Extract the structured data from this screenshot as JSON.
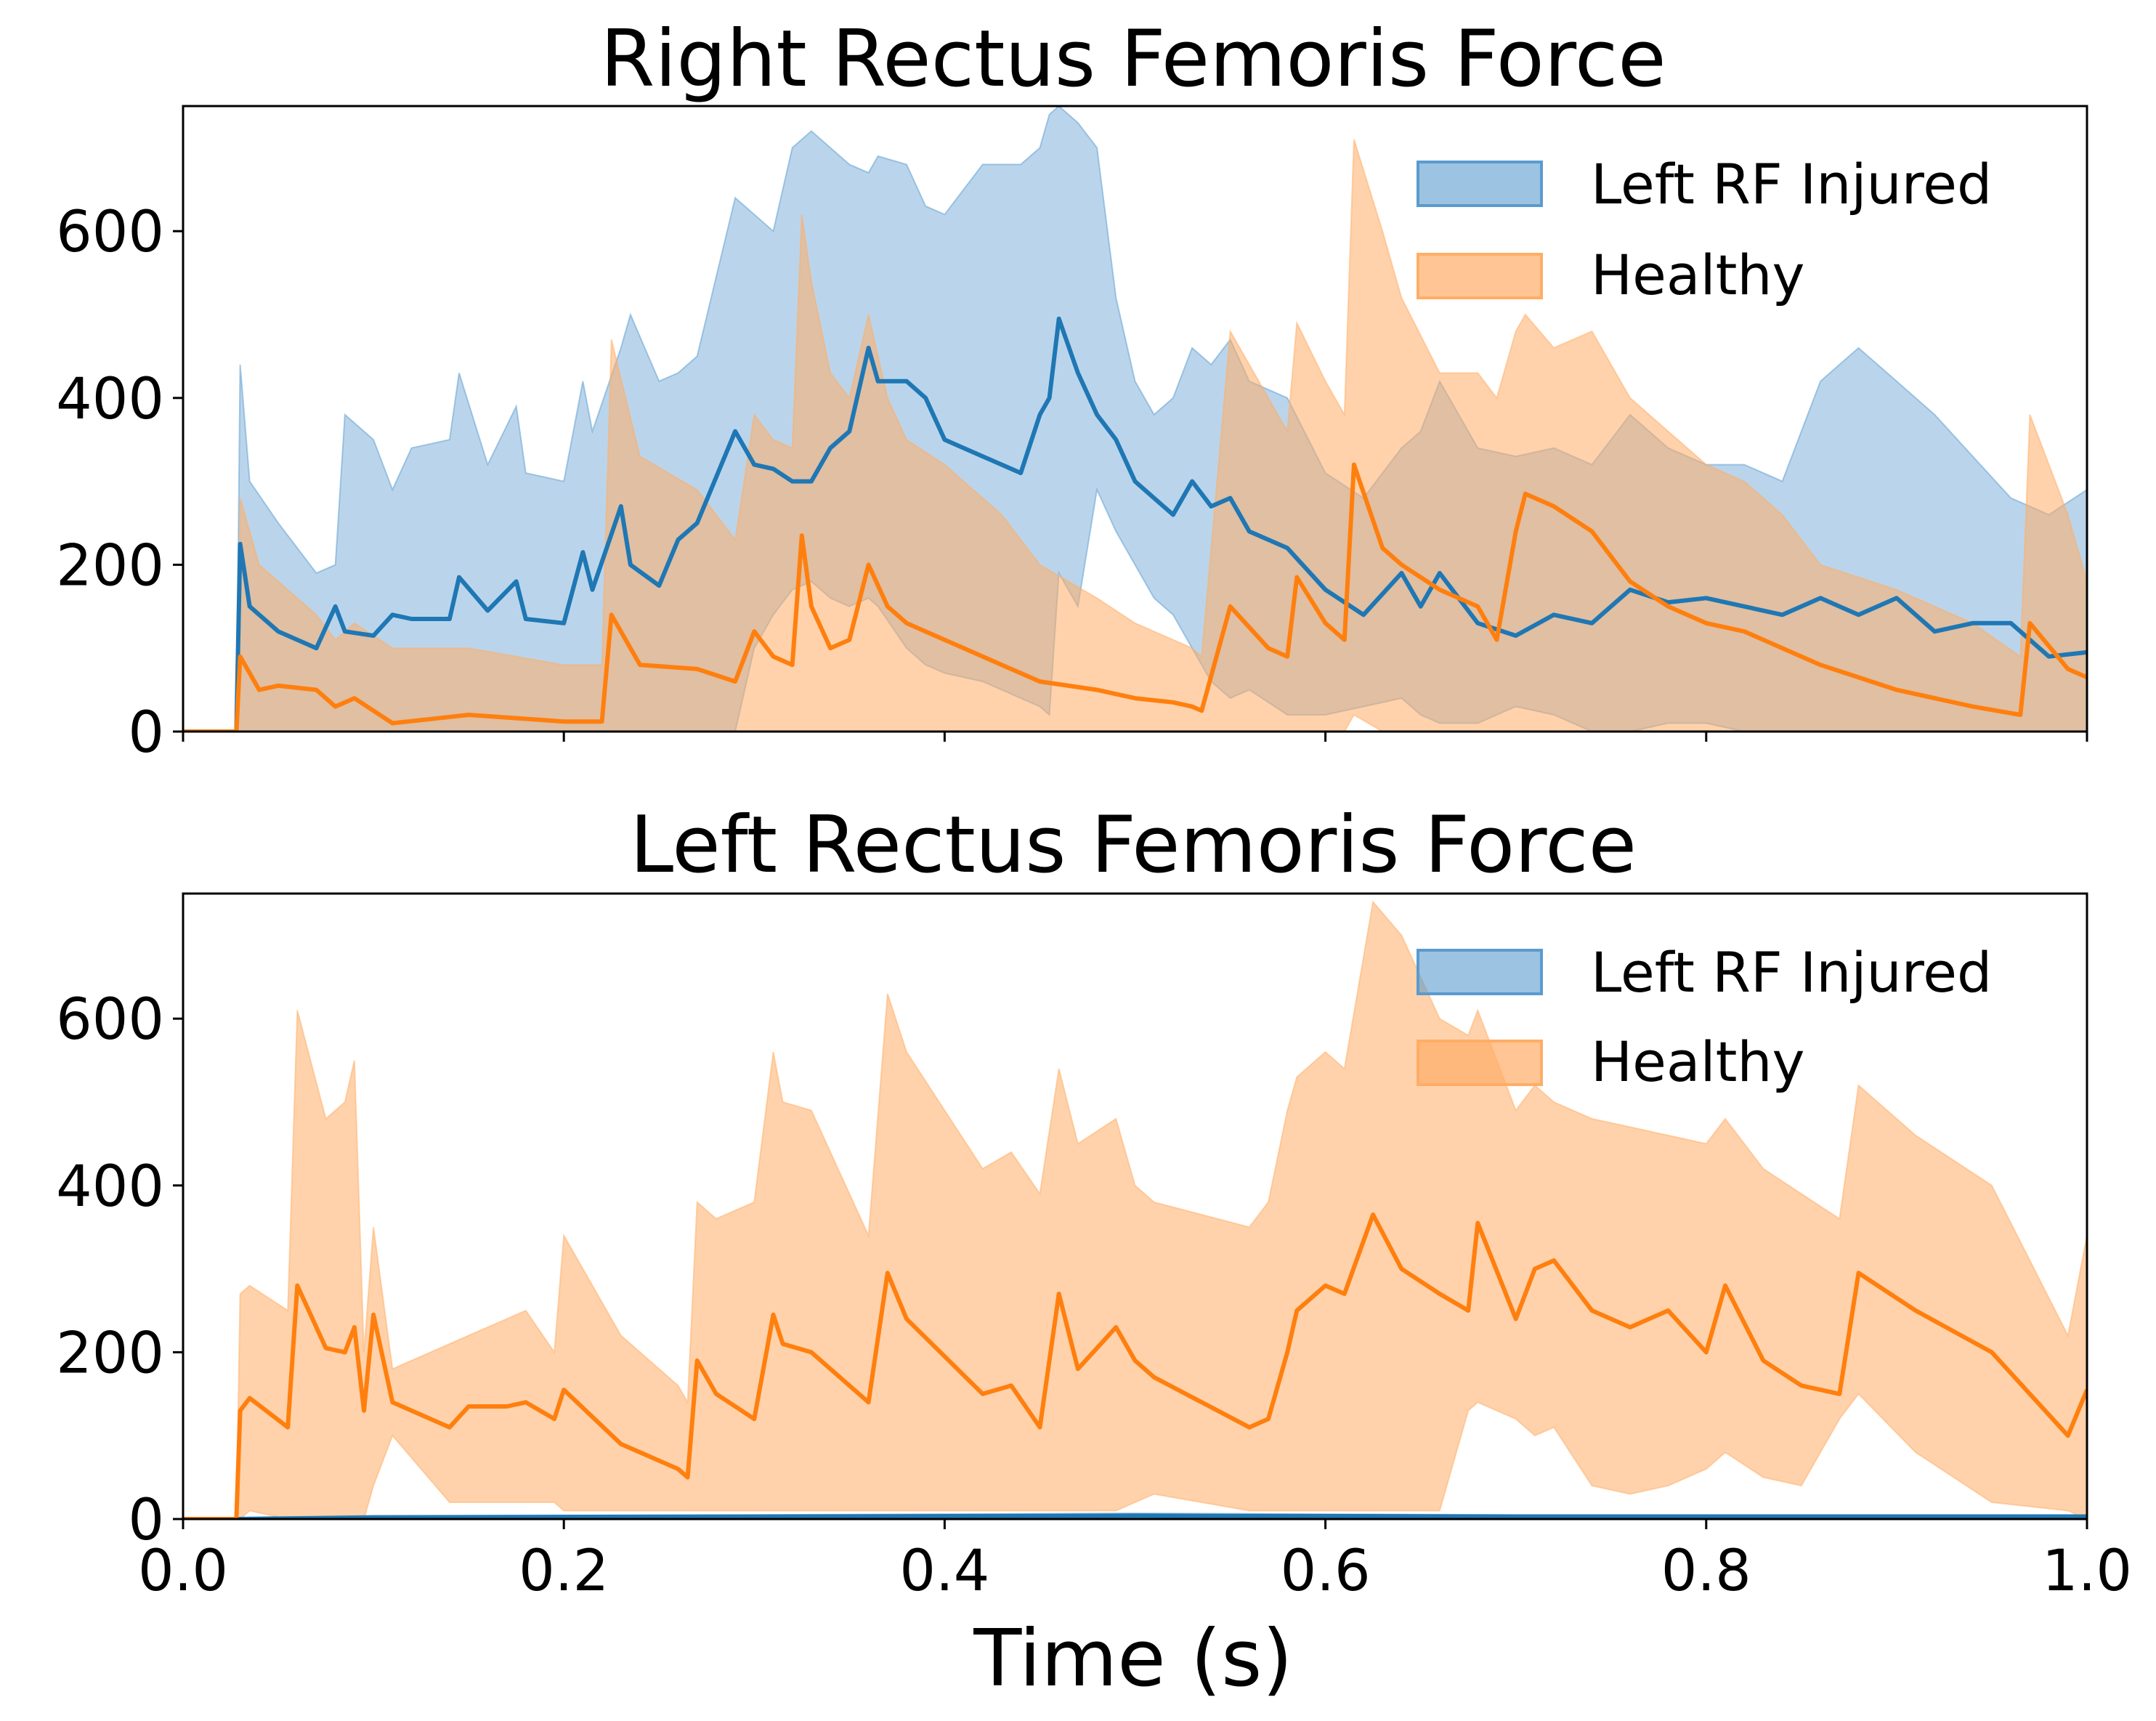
{
  "colors": {
    "injured": "#1f77b4",
    "healthy": "#ff7f0e",
    "injured_band": "#5a9bcf",
    "healthy_band": "#ffad66",
    "axis": "#000000"
  },
  "xlabel": "Time (s)",
  "chart_data": [
    {
      "type": "area",
      "title": "Right Rectus Femoris Force",
      "xlabel": "",
      "ylabel": "",
      "xlim": [
        0,
        1.0
      ],
      "ylim": [
        0,
        750
      ],
      "x_ticks": [
        "0.0",
        "0.2",
        "0.4",
        "0.6",
        "0.8",
        "1.0"
      ],
      "y_ticks": [
        "0",
        "200",
        "400",
        "600"
      ],
      "legend": {
        "position": "top-right",
        "entries": [
          "Left RF Injured",
          "Healthy"
        ]
      },
      "series": [
        {
          "name": "Left RF Injured",
          "color": "#1f77b4",
          "x": [
            0,
            0.028,
            0.03,
            0.035,
            0.05,
            0.07,
            0.08,
            0.085,
            0.1,
            0.11,
            0.12,
            0.14,
            0.145,
            0.16,
            0.175,
            0.18,
            0.2,
            0.21,
            0.215,
            0.23,
            0.235,
            0.25,
            0.26,
            0.27,
            0.29,
            0.3,
            0.31,
            0.32,
            0.33,
            0.34,
            0.35,
            0.36,
            0.365,
            0.38,
            0.39,
            0.4,
            0.42,
            0.44,
            0.45,
            0.455,
            0.46,
            0.47,
            0.48,
            0.49,
            0.5,
            0.51,
            0.52,
            0.53,
            0.54,
            0.55,
            0.56,
            0.58,
            0.6,
            0.62,
            0.64,
            0.65,
            0.66,
            0.68,
            0.7,
            0.72,
            0.74,
            0.76,
            0.78,
            0.8,
            0.82,
            0.84,
            0.86,
            0.88,
            0.9,
            0.92,
            0.94,
            0.96,
            0.98,
            1.0
          ],
          "mean": [
            0,
            0,
            225,
            150,
            120,
            100,
            150,
            120,
            115,
            140,
            135,
            135,
            185,
            145,
            180,
            135,
            130,
            215,
            170,
            270,
            200,
            175,
            230,
            250,
            360,
            320,
            315,
            300,
            300,
            340,
            360,
            460,
            420,
            420,
            400,
            350,
            330,
            310,
            380,
            400,
            495,
            430,
            380,
            350,
            300,
            280,
            260,
            300,
            270,
            280,
            240,
            220,
            170,
            140,
            190,
            150,
            190,
            130,
            115,
            140,
            130,
            170,
            155,
            160,
            150,
            140,
            160,
            140,
            160,
            120,
            130,
            130,
            90,
            95
          ],
          "upper": [
            0,
            0,
            440,
            300,
            250,
            190,
            200,
            380,
            350,
            290,
            340,
            350,
            430,
            320,
            390,
            310,
            300,
            420,
            360,
            460,
            500,
            420,
            430,
            450,
            640,
            620,
            600,
            700,
            720,
            700,
            680,
            670,
            690,
            680,
            630,
            620,
            680,
            680,
            700,
            740,
            760,
            730,
            700,
            520,
            420,
            380,
            400,
            460,
            440,
            470,
            420,
            400,
            310,
            280,
            340,
            360,
            420,
            340,
            330,
            340,
            320,
            380,
            340,
            320,
            320,
            300,
            420,
            460,
            420,
            380,
            330,
            280,
            260,
            290
          ],
          "lower": [
            0,
            0,
            0,
            0,
            0,
            0,
            0,
            0,
            0,
            0,
            0,
            0,
            0,
            0,
            0,
            0,
            0,
            0,
            0,
            0,
            0,
            0,
            0,
            0,
            0,
            100,
            140,
            170,
            180,
            160,
            150,
            160,
            150,
            100,
            80,
            70,
            60,
            40,
            30,
            20,
            190,
            150,
            290,
            240,
            200,
            160,
            140,
            100,
            60,
            40,
            50,
            20,
            20,
            30,
            40,
            20,
            10,
            10,
            30,
            20,
            0,
            0,
            10,
            10,
            0,
            0,
            0,
            0,
            0,
            0,
            0,
            0,
            0,
            0
          ]
        },
        {
          "name": "Healthy",
          "color": "#ff7f0e",
          "x": [
            0,
            0.028,
            0.03,
            0.04,
            0.05,
            0.07,
            0.08,
            0.09,
            0.11,
            0.13,
            0.15,
            0.2,
            0.22,
            0.225,
            0.24,
            0.27,
            0.29,
            0.3,
            0.31,
            0.32,
            0.325,
            0.33,
            0.34,
            0.35,
            0.36,
            0.37,
            0.38,
            0.4,
            0.43,
            0.45,
            0.48,
            0.5,
            0.52,
            0.53,
            0.535,
            0.55,
            0.57,
            0.58,
            0.585,
            0.6,
            0.61,
            0.615,
            0.63,
            0.64,
            0.66,
            0.68,
            0.69,
            0.7,
            0.705,
            0.72,
            0.74,
            0.76,
            0.78,
            0.8,
            0.82,
            0.84,
            0.86,
            0.9,
            0.94,
            0.965,
            0.97,
            0.99,
            1.0
          ],
          "mean": [
            0,
            0,
            90,
            50,
            55,
            50,
            30,
            40,
            10,
            15,
            20,
            12,
            12,
            140,
            80,
            75,
            60,
            120,
            90,
            80,
            235,
            150,
            100,
            110,
            200,
            150,
            130,
            110,
            80,
            60,
            50,
            40,
            35,
            30,
            25,
            150,
            100,
            90,
            185,
            130,
            110,
            320,
            220,
            200,
            170,
            150,
            110,
            240,
            285,
            270,
            240,
            180,
            150,
            130,
            120,
            100,
            80,
            50,
            30,
            20,
            130,
            75,
            65
          ],
          "upper": [
            0,
            0,
            280,
            200,
            180,
            140,
            110,
            130,
            100,
            100,
            100,
            80,
            80,
            470,
            330,
            290,
            230,
            380,
            350,
            340,
            620,
            540,
            430,
            400,
            500,
            400,
            350,
            320,
            260,
            200,
            160,
            130,
            110,
            100,
            90,
            480,
            400,
            360,
            490,
            420,
            380,
            710,
            600,
            520,
            430,
            430,
            400,
            480,
            500,
            460,
            480,
            400,
            360,
            320,
            300,
            260,
            200,
            170,
            130,
            90,
            380,
            260,
            180
          ],
          "lower": [
            0,
            0,
            0,
            0,
            0,
            0,
            0,
            0,
            0,
            0,
            0,
            0,
            0,
            0,
            0,
            0,
            0,
            0,
            0,
            0,
            0,
            0,
            0,
            0,
            0,
            0,
            0,
            0,
            0,
            0,
            0,
            0,
            0,
            0,
            0,
            0,
            0,
            0,
            0,
            0,
            0,
            20,
            0,
            0,
            0,
            0,
            0,
            0,
            0,
            0,
            0,
            0,
            0,
            0,
            0,
            0,
            0,
            0,
            0,
            0,
            0,
            0,
            0
          ]
        }
      ]
    },
    {
      "type": "area",
      "title": "Left Rectus Femoris Force",
      "xlabel": "Time (s)",
      "ylabel": "",
      "xlim": [
        0,
        1.0
      ],
      "ylim": [
        0,
        750
      ],
      "x_ticks": [
        "0.0",
        "0.2",
        "0.4",
        "0.6",
        "0.8",
        "1.0"
      ],
      "y_ticks": [
        "0",
        "200",
        "400",
        "600"
      ],
      "legend": {
        "position": "top-right",
        "entries": [
          "Left RF Injured",
          "Healthy"
        ]
      },
      "series": [
        {
          "name": "Left RF Injured",
          "color": "#1f77b4",
          "x": [
            0,
            0.028,
            0.1,
            0.3,
            0.5,
            0.7,
            0.9,
            1.0
          ],
          "mean": [
            0,
            0,
            2,
            3,
            4,
            3,
            3,
            3
          ],
          "upper": [
            0,
            0,
            4,
            5,
            7,
            5,
            5,
            5
          ],
          "lower": [
            0,
            0,
            0,
            0,
            0,
            0,
            0,
            0
          ]
        },
        {
          "name": "Healthy",
          "color": "#ff7f0e",
          "x": [
            0,
            0.028,
            0.03,
            0.035,
            0.055,
            0.06,
            0.075,
            0.085,
            0.09,
            0.095,
            0.1,
            0.11,
            0.14,
            0.15,
            0.17,
            0.18,
            0.195,
            0.2,
            0.23,
            0.26,
            0.265,
            0.27,
            0.28,
            0.3,
            0.31,
            0.315,
            0.33,
            0.36,
            0.37,
            0.38,
            0.42,
            0.435,
            0.45,
            0.46,
            0.47,
            0.49,
            0.5,
            0.51,
            0.56,
            0.57,
            0.58,
            0.585,
            0.6,
            0.61,
            0.625,
            0.64,
            0.66,
            0.675,
            0.68,
            0.7,
            0.71,
            0.72,
            0.74,
            0.76,
            0.78,
            0.8,
            0.81,
            0.83,
            0.85,
            0.87,
            0.88,
            0.91,
            0.95,
            0.99,
            1.0
          ],
          "mean": [
            0,
            0,
            130,
            145,
            110,
            280,
            205,
            200,
            230,
            130,
            245,
            140,
            110,
            135,
            135,
            140,
            120,
            155,
            90,
            60,
            50,
            190,
            150,
            120,
            245,
            210,
            200,
            140,
            295,
            240,
            150,
            160,
            110,
            270,
            180,
            230,
            190,
            170,
            110,
            120,
            200,
            250,
            280,
            270,
            365,
            300,
            270,
            250,
            355,
            240,
            300,
            310,
            250,
            230,
            250,
            200,
            280,
            190,
            160,
            150,
            295,
            250,
            200,
            100,
            155
          ],
          "upper": [
            0,
            0,
            270,
            280,
            250,
            610,
            480,
            500,
            550,
            200,
            350,
            180,
            210,
            220,
            240,
            250,
            200,
            340,
            220,
            160,
            140,
            380,
            360,
            380,
            560,
            500,
            490,
            340,
            630,
            560,
            420,
            440,
            390,
            540,
            450,
            480,
            400,
            380,
            350,
            380,
            490,
            530,
            560,
            540,
            740,
            700,
            600,
            580,
            610,
            490,
            520,
            500,
            480,
            470,
            460,
            450,
            480,
            420,
            390,
            360,
            520,
            460,
            400,
            220,
            340
          ],
          "lower": [
            0,
            0,
            0,
            10,
            0,
            0,
            0,
            0,
            0,
            0,
            40,
            100,
            20,
            20,
            20,
            20,
            20,
            10,
            10,
            10,
            10,
            10,
            10,
            10,
            10,
            10,
            10,
            10,
            10,
            10,
            10,
            10,
            10,
            10,
            10,
            10,
            20,
            30,
            10,
            10,
            10,
            10,
            10,
            10,
            10,
            10,
            10,
            130,
            140,
            120,
            100,
            110,
            40,
            30,
            40,
            60,
            80,
            50,
            40,
            120,
            150,
            80,
            20,
            10,
            0
          ]
        }
      ]
    }
  ]
}
